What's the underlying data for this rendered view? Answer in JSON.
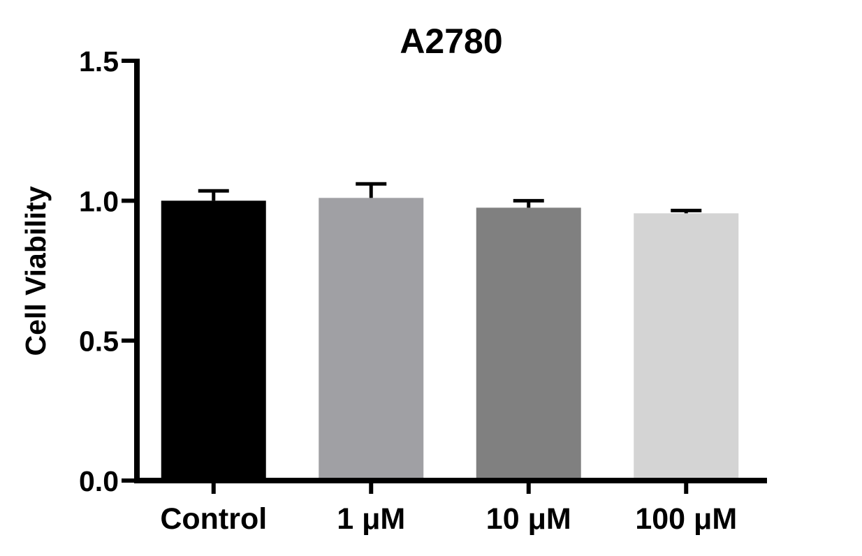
{
  "chart_data": {
    "type": "bar",
    "title": "A2780",
    "xlabel": "",
    "ylabel": "Cell Viability",
    "ylim": [
      0,
      1.5
    ],
    "yticks": [
      0.0,
      0.5,
      1.0,
      1.5
    ],
    "ytick_labels": [
      "0.0",
      "0.5",
      "1.0",
      "1.5"
    ],
    "categories": [
      "Control",
      "1 μM",
      "10 μM",
      "100 μM"
    ],
    "values": [
      1.0,
      1.01,
      0.975,
      0.955
    ],
    "errors": [
      0.035,
      0.05,
      0.025,
      0.01
    ],
    "bar_colors": [
      "#000000",
      "#a0a0a4",
      "#808080",
      "#d4d4d4"
    ],
    "grid": false,
    "legend": "none"
  }
}
